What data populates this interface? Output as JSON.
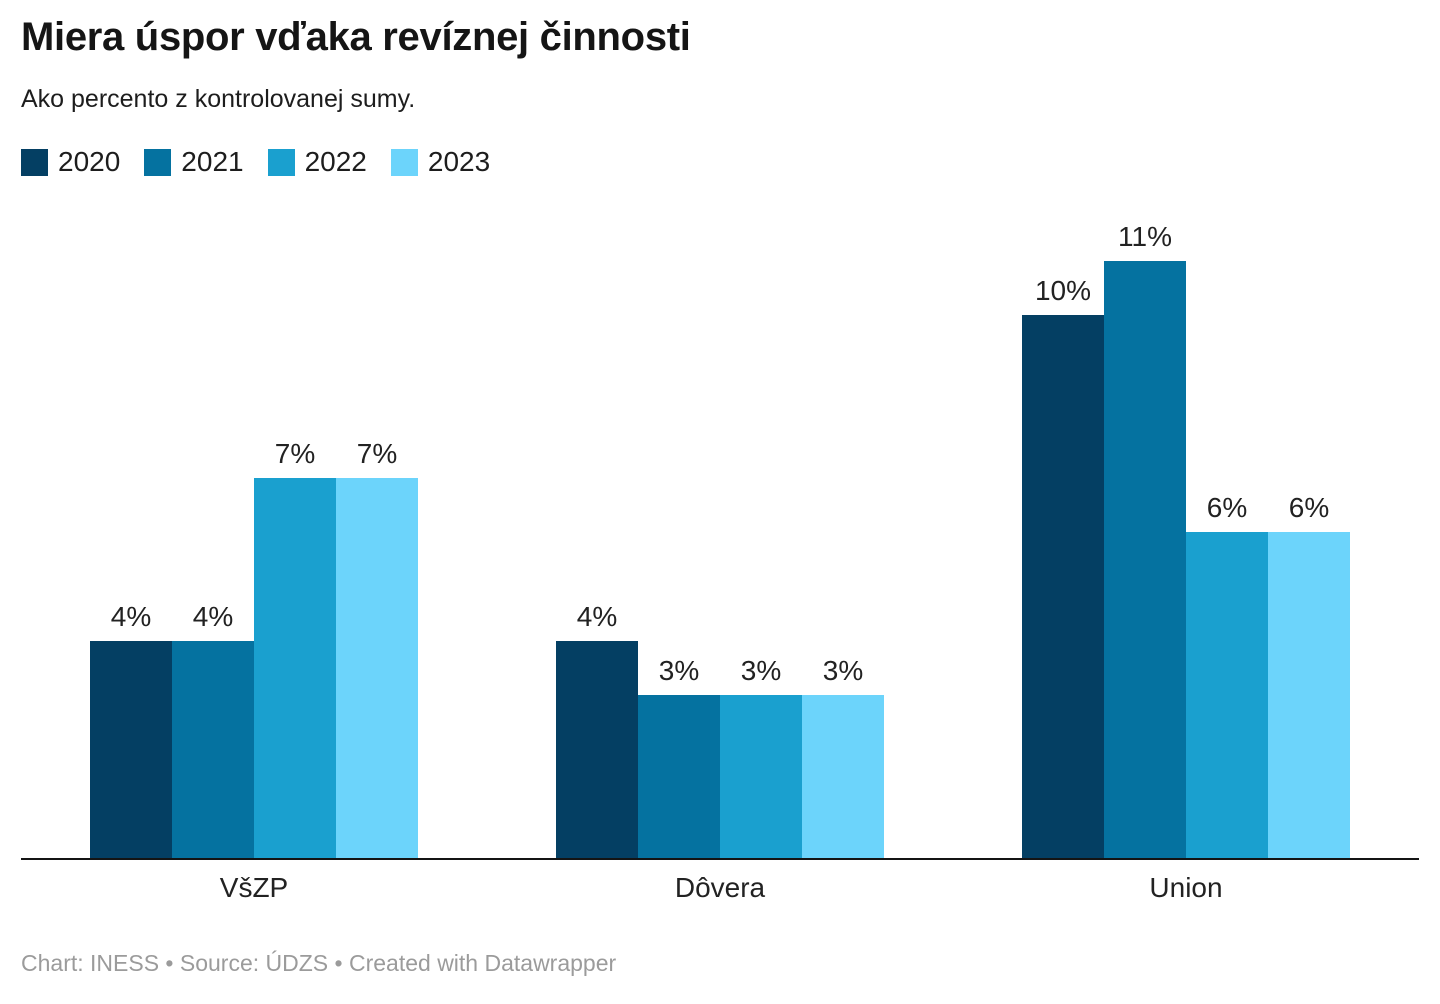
{
  "chart_data": {
    "type": "bar",
    "title": "Miera úspor vďaka revíznej činnosti",
    "subtitle": "Ako percento z kontrolovanej sumy.",
    "categories": [
      "VšZP",
      "Dôvera",
      "Union"
    ],
    "series": [
      {
        "name": "2020",
        "color": "#043f63",
        "values": [
          4,
          4,
          10
        ]
      },
      {
        "name": "2021",
        "color": "#0572a0",
        "values": [
          4,
          3,
          11
        ]
      },
      {
        "name": "2022",
        "color": "#1aa0cf",
        "values": [
          7,
          3,
          6
        ]
      },
      {
        "name": "2023",
        "color": "#6cd4fb",
        "values": [
          7,
          3,
          6
        ]
      }
    ],
    "value_suffix": "%",
    "xlabel": "",
    "ylabel": "",
    "ylim": [
      0,
      11.93
    ],
    "grid": false,
    "legend_position": "top",
    "axis_line_color": "#141414"
  },
  "footer": {
    "credit": "Chart: INESS • Source: ÚDZS • Created with Datawrapper"
  }
}
